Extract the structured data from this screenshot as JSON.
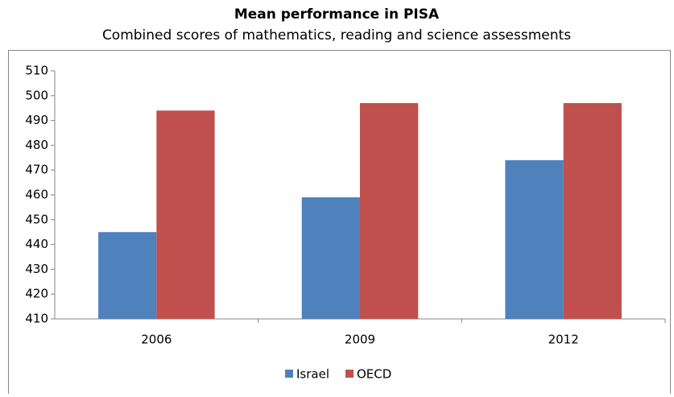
{
  "chart_data": {
    "type": "bar",
    "title": "Mean performance in PISA",
    "subtitle": "Combined scores of mathematics, reading and science assessments",
    "categories": [
      "2006",
      "2009",
      "2012"
    ],
    "series": [
      {
        "name": "Israel",
        "color": "#4f81bd",
        "values": [
          445,
          459,
          474
        ]
      },
      {
        "name": "OECD",
        "color": "#c0504d",
        "values": [
          494,
          497,
          497
        ]
      }
    ],
    "ylim": [
      410,
      510
    ],
    "yticks": [
      410,
      420,
      430,
      440,
      450,
      460,
      470,
      480,
      490,
      500,
      510
    ],
    "grid": false,
    "legend": "bottom"
  }
}
